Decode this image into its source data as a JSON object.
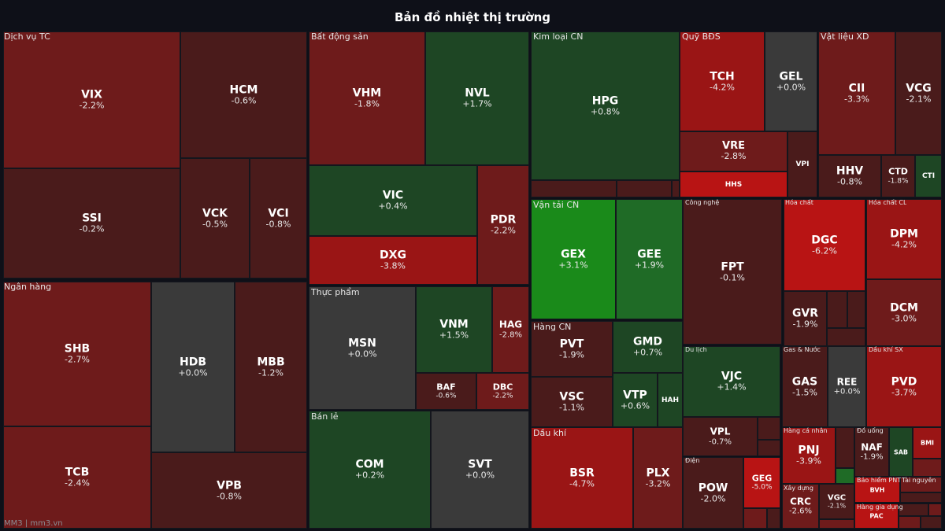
{
  "title": "Bản đồ nhiệt thị trường",
  "footer": "MM3 | mm3.vn",
  "colors": {
    "background": "#0e1018",
    "neutral": "#3a3a3a",
    "red_strong": "#b81414",
    "red_mid": "#9a1515",
    "red_dim": "#6e1b1b",
    "red_dark": "#4a1b1b",
    "green_strong": "#1a8a1a",
    "green_mid": "#1f6b26",
    "green_dark": "#1e4624"
  },
  "chart_data": {
    "type": "heatmap",
    "title": "Bản đồ nhiệt thị trường",
    "sectors": [
      {
        "name": "Dịch vụ TC",
        "stocks": [
          {
            "ticker": "VIX",
            "change": "-2.2%"
          },
          {
            "ticker": "SSI",
            "change": "-0.2%"
          },
          {
            "ticker": "HCM",
            "change": "-0.6%"
          },
          {
            "ticker": "VCK",
            "change": "-0.5%"
          },
          {
            "ticker": "VCI",
            "change": "-0.8%"
          }
        ]
      },
      {
        "name": "Ngân hàng",
        "stocks": [
          {
            "ticker": "SHB",
            "change": "-2.7%"
          },
          {
            "ticker": "TCB",
            "change": "-2.4%"
          },
          {
            "ticker": "HDB",
            "change": "+0.0%"
          },
          {
            "ticker": "MBB",
            "change": "-1.2%"
          },
          {
            "ticker": "VPB",
            "change": "-0.8%"
          }
        ]
      },
      {
        "name": "Bất động sản",
        "stocks": [
          {
            "ticker": "VHM",
            "change": "-1.8%"
          },
          {
            "ticker": "NVL",
            "change": "+1.7%"
          },
          {
            "ticker": "VIC",
            "change": "+0.4%"
          },
          {
            "ticker": "DXG",
            "change": "-3.8%"
          },
          {
            "ticker": "PDR",
            "change": "-2.2%"
          }
        ]
      },
      {
        "name": "Thực phẩm",
        "stocks": [
          {
            "ticker": "MSN",
            "change": "+0.0%"
          },
          {
            "ticker": "VNM",
            "change": "+1.5%"
          },
          {
            "ticker": "HAG",
            "change": "-2.8%"
          },
          {
            "ticker": "BAF",
            "change": "-0.6%"
          },
          {
            "ticker": "DBC",
            "change": "-2.2%"
          }
        ]
      },
      {
        "name": "Bán lẻ",
        "stocks": [
          {
            "ticker": "COM",
            "change": "+0.2%"
          },
          {
            "ticker": "SVT",
            "change": "+0.0%"
          }
        ]
      },
      {
        "name": "Kim loại CN",
        "stocks": [
          {
            "ticker": "HPG",
            "change": "+0.8%"
          }
        ]
      },
      {
        "name": "Vận tải CN",
        "stocks": [
          {
            "ticker": "GEX",
            "change": "+3.1%"
          },
          {
            "ticker": "GEE",
            "change": "+1.9%"
          }
        ]
      },
      {
        "name": "Hàng CN",
        "stocks": [
          {
            "ticker": "PVT",
            "change": "-1.9%"
          },
          {
            "ticker": "GMD",
            "change": "+0.7%"
          },
          {
            "ticker": "VSC",
            "change": "-1.1%"
          },
          {
            "ticker": "VTP",
            "change": "+0.6%"
          },
          {
            "ticker": "HAH",
            "change": ""
          }
        ]
      },
      {
        "name": "Dầu khí",
        "stocks": [
          {
            "ticker": "BSR",
            "change": "-4.7%"
          },
          {
            "ticker": "PLX",
            "change": "-3.2%"
          }
        ]
      },
      {
        "name": "Quỹ BĐS",
        "stocks": [
          {
            "ticker": "TCH",
            "change": "-4.2%"
          },
          {
            "ticker": "GEL",
            "change": "+0.0%"
          },
          {
            "ticker": "VRE",
            "change": "-2.8%"
          },
          {
            "ticker": "VPI",
            "change": ""
          },
          {
            "ticker": "HHS",
            "change": ""
          }
        ]
      },
      {
        "name": "Vật liệu XD",
        "stocks": [
          {
            "ticker": "CII",
            "change": "-3.3%"
          },
          {
            "ticker": "VCG",
            "change": "-2.1%"
          },
          {
            "ticker": "HHV",
            "change": "-0.8%"
          },
          {
            "ticker": "CTD",
            "change": "-1.8%"
          },
          {
            "ticker": "CTI",
            "change": ""
          }
        ]
      },
      {
        "name": "Công nghệ",
        "stocks": [
          {
            "ticker": "FPT",
            "change": "-0.1%"
          }
        ]
      },
      {
        "name": "Hóa chất",
        "stocks": [
          {
            "ticker": "DGC",
            "change": "-6.2%"
          },
          {
            "ticker": "GVR",
            "change": "-1.9%"
          }
        ]
      },
      {
        "name": "Hóa chất CL",
        "stocks": [
          {
            "ticker": "DPM",
            "change": "-4.2%"
          },
          {
            "ticker": "DCM",
            "change": "-3.0%"
          }
        ]
      },
      {
        "name": "Du lịch",
        "stocks": [
          {
            "ticker": "VJC",
            "change": "+1.4%"
          },
          {
            "ticker": "VPL",
            "change": "-0.7%"
          }
        ]
      },
      {
        "name": "Gas & Nước",
        "stocks": [
          {
            "ticker": "GAS",
            "change": "-1.5%"
          },
          {
            "ticker": "REE",
            "change": "+0.0%"
          }
        ]
      },
      {
        "name": "Dầu khí SX",
        "stocks": [
          {
            "ticker": "PVD",
            "change": "-3.7%"
          }
        ]
      },
      {
        "name": "Điện",
        "stocks": [
          {
            "ticker": "POW",
            "change": "-2.0%"
          },
          {
            "ticker": "GEG",
            "change": "-5.0%"
          }
        ]
      },
      {
        "name": "Hàng cá nhân",
        "stocks": [
          {
            "ticker": "PNJ",
            "change": "-3.9%"
          }
        ]
      },
      {
        "name": "Đồ uống",
        "stocks": [
          {
            "ticker": "NAF",
            "change": "-1.9%"
          },
          {
            "ticker": "SAB",
            "change": ""
          },
          {
            "ticker": "BMI",
            "change": ""
          }
        ]
      },
      {
        "name": "Xây dựng",
        "stocks": [
          {
            "ticker": "CRC",
            "change": "-2.6%"
          },
          {
            "ticker": "VGC",
            "change": "-2.1%"
          }
        ]
      },
      {
        "name": "Bảo hiểm PNT",
        "stocks": [
          {
            "ticker": "BVH",
            "change": ""
          }
        ]
      },
      {
        "name": "Tài nguyên",
        "stocks": []
      },
      {
        "name": "Hàng gia dụng",
        "stocks": [
          {
            "ticker": "PAC",
            "change": ""
          }
        ]
      }
    ]
  }
}
